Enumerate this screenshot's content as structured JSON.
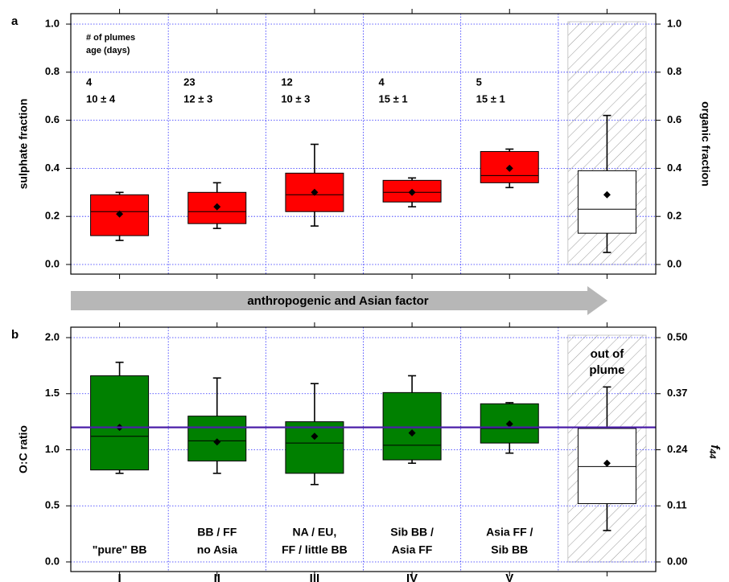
{
  "chart_data": [
    {
      "panel_label": "a",
      "type": "box",
      "ylabel": "sulphate fraction",
      "y2label": "organic fraction",
      "ylim": [
        0.0,
        1.0
      ],
      "y2lim": [
        1.0,
        0.0
      ],
      "yticks": [
        "0.0",
        "0.2",
        "0.4",
        "0.6",
        "0.8",
        "1.0"
      ],
      "y2ticks": [
        "0.0",
        "0.2",
        "0.4",
        "0.6",
        "0.8",
        "1.0"
      ],
      "grid": true,
      "header": [
        "# of plumes",
        "age (days)"
      ],
      "categories": [
        "I",
        "II",
        "III",
        "IV",
        "V",
        "out of plume"
      ],
      "plume_counts": [
        "4",
        "23",
        "12",
        "4",
        "5",
        ""
      ],
      "ages": [
        "10 ± 4",
        "12 ± 3",
        "10 ± 3",
        "15 ± 1",
        "15 ± 1",
        ""
      ],
      "boxes": [
        {
          "low": 0.1,
          "q1": 0.12,
          "median": 0.22,
          "q3": 0.29,
          "high": 0.3,
          "mean": 0.21,
          "color": "#ff0000"
        },
        {
          "low": 0.15,
          "q1": 0.17,
          "median": 0.22,
          "q3": 0.3,
          "high": 0.34,
          "mean": 0.24,
          "color": "#ff0000"
        },
        {
          "low": 0.16,
          "q1": 0.22,
          "median": 0.29,
          "q3": 0.38,
          "high": 0.5,
          "mean": 0.3,
          "color": "#ff0000"
        },
        {
          "low": 0.24,
          "q1": 0.26,
          "median": 0.3,
          "q3": 0.35,
          "high": 0.36,
          "mean": 0.3,
          "color": "#ff0000"
        },
        {
          "low": 0.32,
          "q1": 0.34,
          "median": 0.37,
          "q3": 0.47,
          "high": 0.48,
          "mean": 0.4,
          "color": "#ff0000"
        },
        {
          "low": 0.05,
          "q1": 0.13,
          "median": 0.23,
          "q3": 0.39,
          "high": 0.62,
          "mean": 0.29,
          "color": "#ffffff"
        }
      ]
    },
    {
      "panel_label": "b",
      "type": "box",
      "ylabel": "O:C ratio",
      "y2label": "f44",
      "ylim": [
        0.0,
        2.0
      ],
      "y2lim": [
        0.0,
        0.5
      ],
      "yticks": [
        "0.0",
        "0.5",
        "1.0",
        "1.5",
        "2.0"
      ],
      "y2ticks": [
        "0.00",
        "0.11",
        "0.24",
        "0.37",
        "0.50"
      ],
      "grid": true,
      "categories": [
        "I",
        "II",
        "III",
        "IV",
        "V",
        "out of plume"
      ],
      "descriptions": [
        [
          "\"pure\" BB"
        ],
        [
          "BB / FF",
          "no Asia"
        ],
        [
          "NA / EU,",
          "FF / little BB"
        ],
        [
          "Sib BB /",
          "Asia FF"
        ],
        [
          "Asia FF /",
          "Sib BB"
        ],
        [
          "out of",
          "plume"
        ]
      ],
      "reference_line": 1.2,
      "boxes": [
        {
          "low": 0.79,
          "q1": 0.82,
          "median": 1.12,
          "q3": 1.66,
          "high": 1.78,
          "mean": 1.2,
          "color": "#008000"
        },
        {
          "low": 0.79,
          "q1": 0.9,
          "median": 1.08,
          "q3": 1.3,
          "high": 1.64,
          "mean": 1.07,
          "color": "#008000"
        },
        {
          "low": 0.69,
          "q1": 0.79,
          "median": 1.06,
          "q3": 1.25,
          "high": 1.59,
          "mean": 1.12,
          "color": "#008000"
        },
        {
          "low": 0.88,
          "q1": 0.91,
          "median": 1.04,
          "q3": 1.51,
          "high": 1.66,
          "mean": 1.15,
          "color": "#008000"
        },
        {
          "low": 0.97,
          "q1": 1.06,
          "median": 1.19,
          "q3": 1.41,
          "high": 1.42,
          "mean": 1.23,
          "color": "#008000"
        },
        {
          "low": 0.28,
          "q1": 0.52,
          "median": 0.85,
          "q3": 1.19,
          "high": 1.56,
          "mean": 0.88,
          "color": "#ffffff"
        }
      ]
    }
  ],
  "arrow_label": "anthropogenic and Asian factor"
}
